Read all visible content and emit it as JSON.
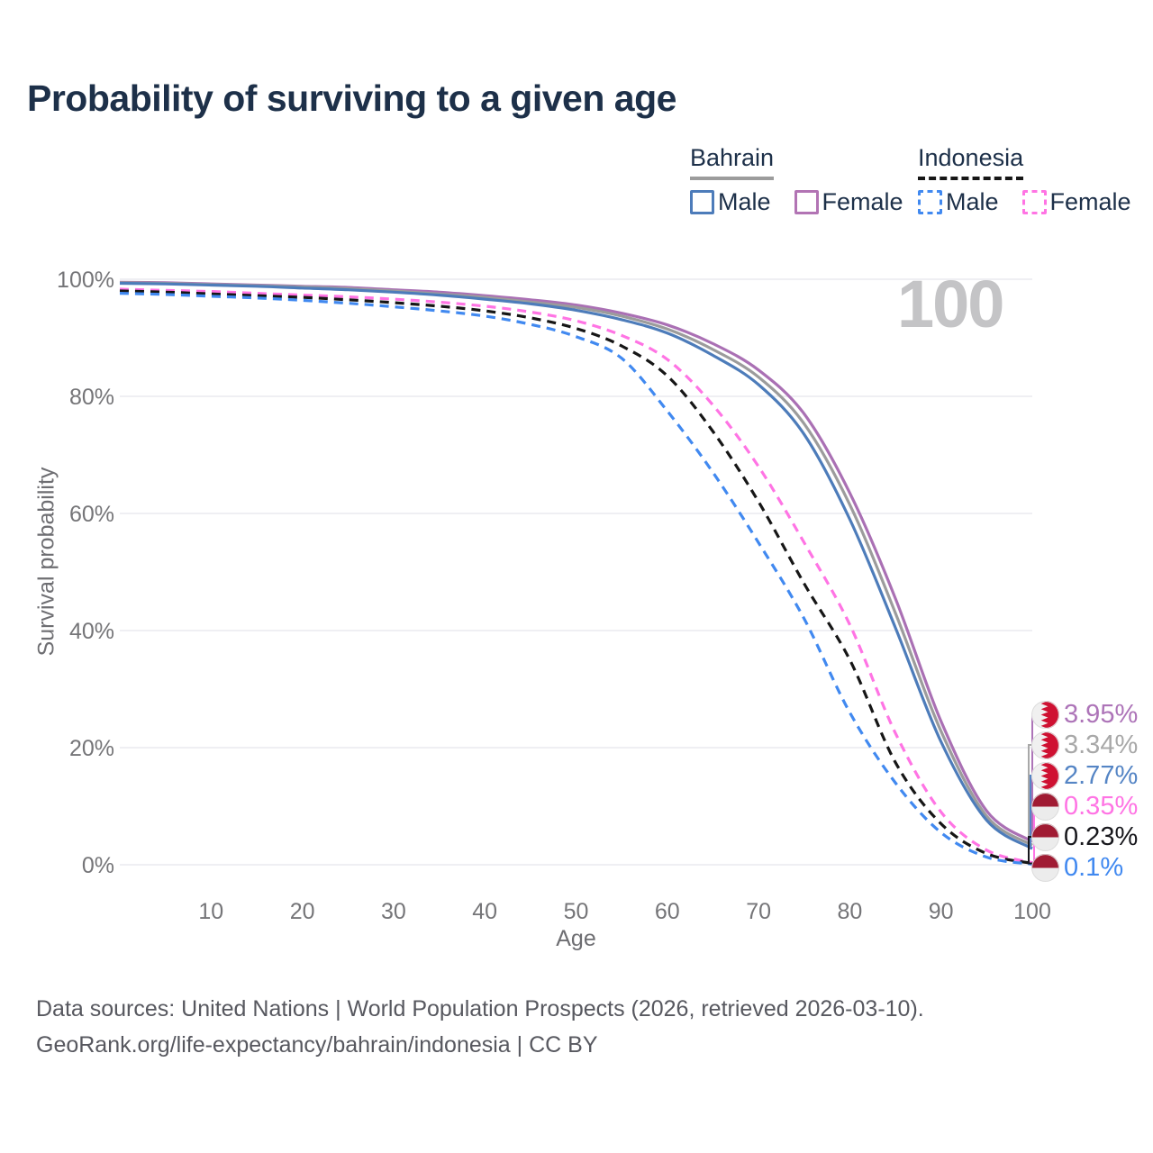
{
  "title": "Probability of surviving to a given age",
  "watermark": "100",
  "legend": {
    "groups": [
      {
        "name": "Bahrain",
        "line_style": "solid",
        "color": "#9c9c9c",
        "items": [
          {
            "label": "Male",
            "color": "#4d7cba",
            "dashed": false
          },
          {
            "label": "Female",
            "color": "#b274b4",
            "dashed": false
          }
        ]
      },
      {
        "name": "Indonesia",
        "line_style": "dashed",
        "color": "#161616",
        "items": [
          {
            "label": "Male",
            "color": "#4189f0",
            "dashed": true
          },
          {
            "label": "Female",
            "color": "#ff74e4",
            "dashed": true
          }
        ]
      }
    ]
  },
  "chart_data": {
    "type": "line",
    "title": "Probability of surviving to a given age",
    "xlabel": "Age",
    "ylabel": "Survival probability",
    "xlim": [
      0,
      100
    ],
    "ylim": [
      0,
      100
    ],
    "grid": "horizontal",
    "x_ticks": [
      10,
      20,
      30,
      40,
      50,
      60,
      70,
      80,
      90,
      100
    ],
    "y_ticks": [
      "0%",
      "20%",
      "40%",
      "60%",
      "80%",
      "100%"
    ],
    "ages": [
      0,
      5,
      10,
      15,
      20,
      25,
      30,
      35,
      40,
      45,
      50,
      55,
      60,
      65,
      70,
      75,
      80,
      85,
      90,
      95,
      100
    ],
    "series": [
      {
        "key": "bahrain-female",
        "country": "Bahrain",
        "sex": "female",
        "color": "#aa70b4",
        "dashed": false,
        "end_label": "3.95%",
        "values": [
          99.5,
          99.4,
          99.2,
          99.0,
          98.8,
          98.6,
          98.2,
          97.8,
          97.2,
          96.5,
          95.6,
          94.2,
          92.2,
          89.0,
          84.5,
          77.0,
          63.5,
          45.5,
          24.5,
          9.2,
          3.95
        ]
      },
      {
        "key": "bahrain-all",
        "country": "Bahrain",
        "sex": "all",
        "color": "#9c9c9c",
        "dashed": false,
        "end_label": "3.34%",
        "values": [
          99.4,
          99.3,
          99.1,
          98.9,
          98.7,
          98.4,
          98.0,
          97.5,
          96.9,
          96.1,
          95.2,
          93.7,
          91.5,
          88.0,
          83.3,
          75.3,
          61.5,
          43.0,
          22.8,
          8.3,
          3.34
        ]
      },
      {
        "key": "bahrain-male",
        "country": "Bahrain",
        "sex": "male",
        "color": "#4d7cba",
        "dashed": false,
        "end_label": "2.77%",
        "values": [
          99.3,
          99.2,
          99.0,
          98.8,
          98.5,
          98.2,
          97.8,
          97.3,
          96.6,
          95.8,
          94.7,
          93.1,
          90.8,
          87.0,
          82.0,
          73.5,
          59.0,
          40.5,
          21.0,
          7.6,
          2.77
        ]
      },
      {
        "key": "indonesia-female",
        "country": "Indonesia",
        "sex": "female",
        "color": "#ff74e4",
        "dashed": true,
        "end_label": "0.35%",
        "values": [
          98.3,
          98.1,
          97.9,
          97.6,
          97.3,
          97.0,
          96.6,
          96.1,
          95.4,
          94.4,
          92.9,
          90.4,
          86.3,
          78.5,
          68.0,
          55.0,
          41.0,
          22.5,
          9.0,
          2.5,
          0.35
        ]
      },
      {
        "key": "indonesia-all",
        "country": "Indonesia",
        "sex": "all",
        "color": "#161616",
        "dashed": true,
        "end_label": "0.23%",
        "values": [
          98.0,
          97.8,
          97.5,
          97.2,
          96.9,
          96.5,
          96.0,
          95.4,
          94.6,
          93.4,
          91.6,
          88.6,
          83.5,
          74.0,
          62.0,
          48.0,
          35.0,
          17.5,
          7.0,
          1.9,
          0.23
        ]
      },
      {
        "key": "indonesia-male",
        "country": "Indonesia",
        "sex": "male",
        "color": "#4189f0",
        "dashed": true,
        "end_label": "0.1%",
        "values": [
          97.6,
          97.4,
          97.1,
          96.8,
          96.4,
          95.9,
          95.3,
          94.6,
          93.7,
          92.3,
          90.2,
          86.5,
          77.5,
          67.0,
          55.0,
          42.0,
          26.0,
          14.0,
          5.5,
          1.3,
          0.1
        ]
      }
    ]
  },
  "end_labels": [
    {
      "text": "3.95%",
      "value": 3.95,
      "color": "#ad74b8",
      "flag": "bahrain"
    },
    {
      "text": "3.34%",
      "value": 3.34,
      "color": "#a8a8a8",
      "flag": "bahrain"
    },
    {
      "text": "2.77%",
      "value": 2.77,
      "color": "#5585c5",
      "flag": "bahrain"
    },
    {
      "text": "0.35%",
      "value": 0.35,
      "color": "#ff74e4",
      "flag": "indonesia"
    },
    {
      "text": "0.23%",
      "value": 0.23,
      "color": "#17171c",
      "flag": "indonesia"
    },
    {
      "text": "0.1%",
      "value": 0.1,
      "color": "#4189f0",
      "flag": "indonesia"
    }
  ],
  "flag_colors": {
    "bahrain_red": "#cf1132",
    "indonesia_red": "#a01b33",
    "flag_white": "#f0f0f0"
  },
  "footer": {
    "line1": "Data sources: United Nations | World Population Prospects (2026, retrieved 2026-03-10).",
    "line2": "GeoRank.org/life-expectancy/bahrain/indonesia | CC BY"
  }
}
